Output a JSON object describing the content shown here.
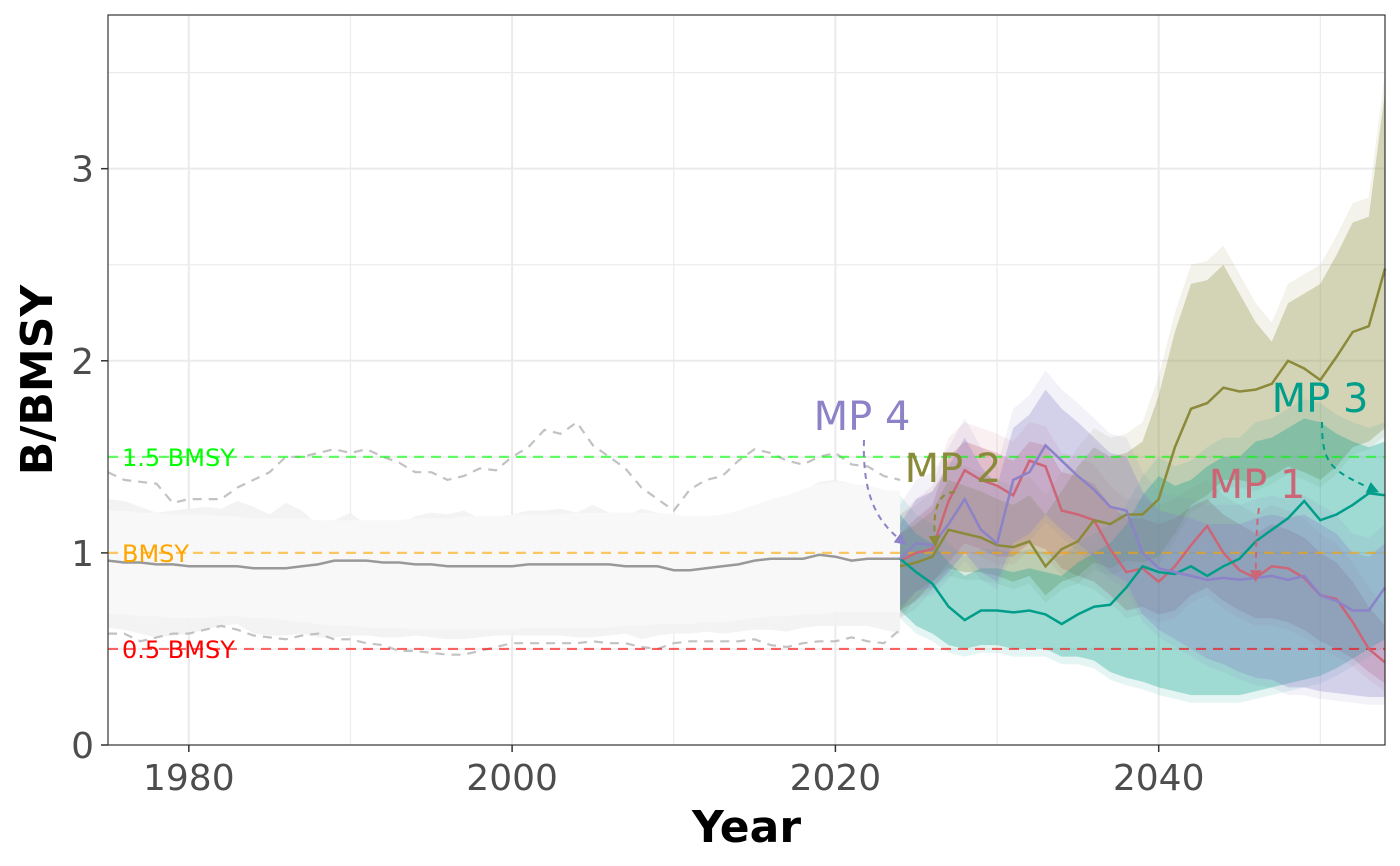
{
  "chart_data": {
    "type": "line",
    "xlabel": "Year",
    "ylabel": "B/BMSY",
    "xlim": [
      1975,
      2054
    ],
    "ylim": [
      0,
      3.8
    ],
    "x_ticks": [
      1980,
      2000,
      2020,
      2040
    ],
    "y_ticks": [
      0,
      1,
      2,
      3
    ],
    "grid": true,
    "reference_lines": [
      {
        "label": "1.5 BMSY",
        "y": 1.5,
        "color": "#00ff00"
      },
      {
        "label": "BMSY",
        "y": 1.0,
        "color": "#ffa500"
      },
      {
        "label": "0.5 BMSY",
        "y": 0.5,
        "color": "#ff0000"
      }
    ],
    "historical": {
      "color": "#999999",
      "x": [
        1975,
        1976,
        1977,
        1978,
        1979,
        1980,
        1981,
        1982,
        1983,
        1984,
        1985,
        1986,
        1987,
        1988,
        1989,
        1990,
        1991,
        1992,
        1993,
        1994,
        1995,
        1996,
        1997,
        1998,
        1999,
        2000,
        2001,
        2002,
        2003,
        2004,
        2005,
        2006,
        2007,
        2008,
        2009,
        2010,
        2011,
        2012,
        2013,
        2014,
        2015,
        2016,
        2017,
        2018,
        2019,
        2020,
        2021,
        2022,
        2023,
        2024
      ],
      "median": [
        0.96,
        0.95,
        0.95,
        0.94,
        0.94,
        0.93,
        0.93,
        0.93,
        0.93,
        0.92,
        0.92,
        0.92,
        0.93,
        0.94,
        0.96,
        0.96,
        0.96,
        0.95,
        0.95,
        0.94,
        0.94,
        0.93,
        0.93,
        0.93,
        0.93,
        0.93,
        0.94,
        0.94,
        0.94,
        0.94,
        0.94,
        0.94,
        0.93,
        0.93,
        0.93,
        0.91,
        0.91,
        0.92,
        0.93,
        0.94,
        0.96,
        0.97,
        0.97,
        0.97,
        0.99,
        0.98,
        0.96,
        0.97,
        0.97,
        0.97
      ],
      "lower": [
        0.68,
        0.68,
        0.67,
        0.67,
        0.66,
        0.66,
        0.66,
        0.67,
        0.67,
        0.66,
        0.66,
        0.65,
        0.64,
        0.63,
        0.62,
        0.62,
        0.61,
        0.61,
        0.61,
        0.6,
        0.6,
        0.6,
        0.6,
        0.6,
        0.6,
        0.6,
        0.61,
        0.61,
        0.61,
        0.61,
        0.61,
        0.61,
        0.62,
        0.62,
        0.63,
        0.63,
        0.63,
        0.64,
        0.64,
        0.65,
        0.66,
        0.67,
        0.67,
        0.68,
        0.68,
        0.69,
        0.69,
        0.69,
        0.69,
        0.69
      ],
      "upper": [
        1.22,
        1.22,
        1.21,
        1.21,
        1.2,
        1.2,
        1.2,
        1.19,
        1.19,
        1.18,
        1.18,
        1.18,
        1.18,
        1.17,
        1.17,
        1.17,
        1.17,
        1.17,
        1.17,
        1.18,
        1.18,
        1.18,
        1.19,
        1.19,
        1.19,
        1.2,
        1.2,
        1.2,
        1.2,
        1.21,
        1.21,
        1.21,
        1.21,
        1.21,
        1.21,
        1.2,
        1.19,
        1.19,
        1.2,
        1.22,
        1.25,
        1.28,
        1.3,
        1.33,
        1.36,
        1.37,
        1.36,
        1.35,
        1.33,
        1.32
      ],
      "outer_upper": [
        1.28,
        1.27,
        1.24,
        1.21,
        1.22,
        1.23,
        1.24,
        1.23,
        1.27,
        1.24,
        1.2,
        1.26,
        1.22,
        1.14,
        1.17,
        1.21,
        1.14,
        1.15,
        1.15,
        1.19,
        1.21,
        1.2,
        1.22,
        1.18,
        1.16,
        1.2,
        1.22,
        1.22,
        1.23,
        1.21,
        1.25,
        1.21,
        1.19,
        1.23,
        1.21,
        1.14,
        1.13,
        1.13,
        1.13,
        1.16,
        1.2,
        1.26,
        1.29,
        1.32,
        1.37,
        1.38,
        1.36,
        1.34,
        1.3,
        1.3
      ],
      "outer_lower": [
        0.61,
        0.6,
        0.58,
        0.56,
        0.57,
        0.58,
        0.6,
        0.62,
        0.63,
        0.58,
        0.57,
        0.57,
        0.58,
        0.56,
        0.56,
        0.57,
        0.57,
        0.56,
        0.56,
        0.57,
        0.56,
        0.55,
        0.55,
        0.56,
        0.57,
        0.57,
        0.57,
        0.57,
        0.57,
        0.56,
        0.56,
        0.57,
        0.58,
        0.55,
        0.57,
        0.58,
        0.58,
        0.59,
        0.58,
        0.59,
        0.6,
        0.6,
        0.59,
        0.61,
        0.62,
        0.62,
        0.62,
        0.62,
        0.6,
        0.58
      ],
      "dashed_upper": [
        1.42,
        1.38,
        1.37,
        1.36,
        1.26,
        1.28,
        1.28,
        1.28,
        1.34,
        1.38,
        1.42,
        1.5,
        1.5,
        1.52,
        1.54,
        1.52,
        1.54,
        1.5,
        1.47,
        1.42,
        1.42,
        1.38,
        1.4,
        1.44,
        1.43,
        1.5,
        1.55,
        1.64,
        1.62,
        1.68,
        1.56,
        1.5,
        1.44,
        1.34,
        1.28,
        1.22,
        1.33,
        1.38,
        1.4,
        1.48,
        1.54,
        1.52,
        1.48,
        1.46,
        1.5,
        1.52,
        1.46,
        1.45,
        1.4,
        1.38
      ],
      "dashed_lower": [
        0.58,
        0.58,
        0.54,
        0.56,
        0.58,
        0.58,
        0.6,
        0.62,
        0.6,
        0.57,
        0.56,
        0.55,
        0.57,
        0.58,
        0.55,
        0.55,
        0.53,
        0.52,
        0.49,
        0.49,
        0.48,
        0.47,
        0.47,
        0.49,
        0.51,
        0.53,
        0.53,
        0.53,
        0.53,
        0.53,
        0.54,
        0.53,
        0.53,
        0.51,
        0.5,
        0.53,
        0.54,
        0.54,
        0.54,
        0.54,
        0.55,
        0.52,
        0.51,
        0.53,
        0.54,
        0.54,
        0.56,
        0.54,
        0.53,
        0.6
      ]
    },
    "series": [
      {
        "name": "MP 1",
        "color": "#cc6677",
        "x": [
          2024,
          2025,
          2026,
          2027,
          2028,
          2029,
          2030,
          2031,
          2032,
          2033,
          2034,
          2035,
          2036,
          2037,
          2038,
          2039,
          2040,
          2041,
          2042,
          2043,
          2044,
          2045,
          2046,
          2047,
          2048,
          2049,
          2050,
          2051,
          2052,
          2053,
          2054
        ],
        "median": [
          0.96,
          1.0,
          1.02,
          1.27,
          1.43,
          1.38,
          1.35,
          1.3,
          1.48,
          1.45,
          1.22,
          1.2,
          1.17,
          1.02,
          0.9,
          0.92,
          0.85,
          0.93,
          1.04,
          1.14,
          1.0,
          0.91,
          0.87,
          0.93,
          0.92,
          0.87,
          0.78,
          0.76,
          0.64,
          0.5,
          0.43
        ],
        "lower": [
          0.7,
          0.75,
          0.85,
          0.95,
          1.05,
          1.02,
          0.98,
          0.98,
          1.05,
          1.02,
          0.92,
          0.88,
          0.85,
          0.78,
          0.7,
          0.72,
          0.68,
          0.7,
          0.78,
          0.82,
          0.75,
          0.7,
          0.66,
          0.66,
          0.64,
          0.6,
          0.54,
          0.5,
          0.45,
          0.38,
          0.32
        ],
        "upper": [
          1.1,
          1.18,
          1.25,
          1.5,
          1.58,
          1.55,
          1.52,
          1.48,
          1.58,
          1.56,
          1.42,
          1.4,
          1.36,
          1.25,
          1.18,
          1.18,
          1.15,
          1.18,
          1.24,
          1.28,
          1.2,
          1.15,
          1.1,
          1.15,
          1.12,
          1.08,
          1.0,
          0.95,
          0.85,
          0.72,
          0.62
        ]
      },
      {
        "name": "MP 2",
        "color": "#8a8a3a",
        "x": [
          2024,
          2025,
          2026,
          2027,
          2028,
          2029,
          2030,
          2031,
          2032,
          2033,
          2034,
          2035,
          2036,
          2037,
          2038,
          2039,
          2040,
          2041,
          2042,
          2043,
          2044,
          2045,
          2046,
          2047,
          2048,
          2049,
          2050,
          2051,
          2052,
          2053,
          2054
        ],
        "median": [
          0.93,
          0.95,
          0.98,
          1.12,
          1.1,
          1.08,
          1.04,
          1.03,
          1.06,
          0.93,
          1.02,
          1.06,
          1.17,
          1.15,
          1.2,
          1.2,
          1.28,
          1.55,
          1.75,
          1.78,
          1.86,
          1.84,
          1.85,
          1.88,
          2.0,
          1.96,
          1.9,
          2.02,
          2.15,
          2.18,
          2.48
        ],
        "lower": [
          0.7,
          0.8,
          0.85,
          0.92,
          0.9,
          0.9,
          0.88,
          0.85,
          0.88,
          0.78,
          0.85,
          0.88,
          0.95,
          0.92,
          0.96,
          0.95,
          0.98,
          1.1,
          1.25,
          1.3,
          1.38,
          1.38,
          1.36,
          1.4,
          1.45,
          1.42,
          1.38,
          1.45,
          1.55,
          1.58,
          1.65
        ],
        "upper": [
          1.1,
          1.15,
          1.22,
          1.38,
          1.35,
          1.32,
          1.28,
          1.25,
          1.3,
          1.2,
          1.32,
          1.45,
          1.55,
          1.5,
          1.52,
          1.58,
          1.82,
          2.15,
          2.4,
          2.42,
          2.5,
          2.35,
          2.2,
          2.1,
          2.3,
          2.35,
          2.4,
          2.55,
          2.72,
          2.75,
          3.4
        ]
      },
      {
        "name": "MP 3",
        "color": "#009e8a",
        "x": [
          2024,
          2025,
          2026,
          2027,
          2028,
          2029,
          2030,
          2031,
          2032,
          2033,
          2034,
          2035,
          2036,
          2037,
          2038,
          2039,
          2040,
          2041,
          2042,
          2043,
          2044,
          2045,
          2046,
          2047,
          2048,
          2049,
          2050,
          2051,
          2052,
          2053,
          2054
        ],
        "median": [
          0.97,
          0.9,
          0.84,
          0.72,
          0.65,
          0.7,
          0.7,
          0.69,
          0.7,
          0.68,
          0.63,
          0.68,
          0.72,
          0.73,
          0.82,
          0.93,
          0.9,
          0.89,
          0.93,
          0.88,
          0.93,
          0.97,
          1.06,
          1.12,
          1.18,
          1.27,
          1.17,
          1.2,
          1.25,
          1.31,
          1.3
        ],
        "lower": [
          0.7,
          0.62,
          0.58,
          0.52,
          0.5,
          0.52,
          0.52,
          0.5,
          0.5,
          0.5,
          0.46,
          0.46,
          0.44,
          0.38,
          0.35,
          0.33,
          0.3,
          0.28,
          0.26,
          0.26,
          0.26,
          0.26,
          0.28,
          0.3,
          0.32,
          0.34,
          0.36,
          0.4,
          0.45,
          0.5,
          0.55
        ],
        "upper": [
          1.2,
          1.1,
          1.05,
          0.95,
          0.88,
          0.92,
          0.92,
          0.9,
          0.92,
          0.9,
          0.88,
          0.95,
          1.0,
          1.05,
          1.15,
          1.3,
          1.4,
          1.35,
          1.38,
          1.45,
          1.5,
          1.5,
          1.58,
          1.6,
          1.65,
          1.7,
          1.68,
          1.62,
          1.58,
          1.55,
          1.58
        ]
      },
      {
        "name": "MP 4",
        "color": "#8c82c8",
        "x": [
          2024,
          2025,
          2026,
          2027,
          2028,
          2029,
          2030,
          2031,
          2032,
          2033,
          2034,
          2035,
          2036,
          2037,
          2038,
          2039,
          2040,
          2041,
          2042,
          2043,
          2044,
          2045,
          2046,
          2047,
          2048,
          2049,
          2050,
          2051,
          2052,
          2053,
          2054
        ],
        "median": [
          0.97,
          1.05,
          1.04,
          1.15,
          1.28,
          1.12,
          1.05,
          1.38,
          1.42,
          1.56,
          1.48,
          1.4,
          1.33,
          1.24,
          1.22,
          1.0,
          0.92,
          0.9,
          0.88,
          0.86,
          0.87,
          0.86,
          0.87,
          0.88,
          0.86,
          0.88,
          0.78,
          0.75,
          0.7,
          0.7,
          0.82
        ],
        "lower": [
          0.72,
          0.8,
          0.82,
          0.9,
          1.0,
          0.9,
          0.85,
          1.05,
          1.1,
          1.2,
          1.12,
          1.05,
          0.98,
          0.9,
          0.85,
          0.68,
          0.6,
          0.55,
          0.5,
          0.45,
          0.42,
          0.38,
          0.35,
          0.34,
          0.3,
          0.3,
          0.28,
          0.27,
          0.26,
          0.25,
          0.25
        ],
        "upper": [
          1.15,
          1.28,
          1.32,
          1.45,
          1.6,
          1.45,
          1.35,
          1.65,
          1.72,
          1.85,
          1.75,
          1.68,
          1.6,
          1.52,
          1.5,
          1.32,
          1.22,
          1.2,
          1.18,
          1.15,
          1.15,
          1.15,
          1.18,
          1.2,
          1.18,
          1.2,
          1.15,
          1.1,
          1.0,
          0.98,
          1.05
        ]
      }
    ]
  }
}
